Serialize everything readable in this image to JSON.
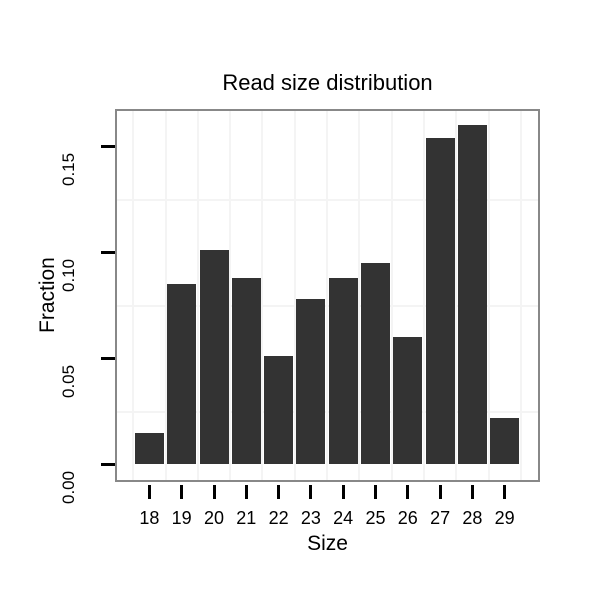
{
  "chart_data": {
    "type": "bar",
    "title": "Read size distribution",
    "xlabel": "Size",
    "ylabel": "Fraction",
    "categories": [
      "18",
      "19",
      "20",
      "21",
      "22",
      "23",
      "24",
      "25",
      "26",
      "27",
      "28",
      "29"
    ],
    "values": [
      0.015,
      0.085,
      0.101,
      0.088,
      0.051,
      0.078,
      0.088,
      0.095,
      0.06,
      0.154,
      0.16,
      0.022
    ],
    "ytick_labels": [
      "0.00",
      "0.05",
      "0.10",
      "0.15"
    ],
    "ytick_values": [
      0,
      0.05,
      0.1,
      0.15
    ],
    "minor_ytick_values": [
      0.025,
      0.075,
      0.125
    ],
    "ylim": [
      -0.008,
      0.168
    ],
    "grid": "minor gridlines only, very light gray",
    "legend_position": "none",
    "bar_color": "#333333",
    "grid_color": "#f4f4f4",
    "panel_border_color": "#888888",
    "text_color": "#000000",
    "background_color": "#ffffff"
  }
}
